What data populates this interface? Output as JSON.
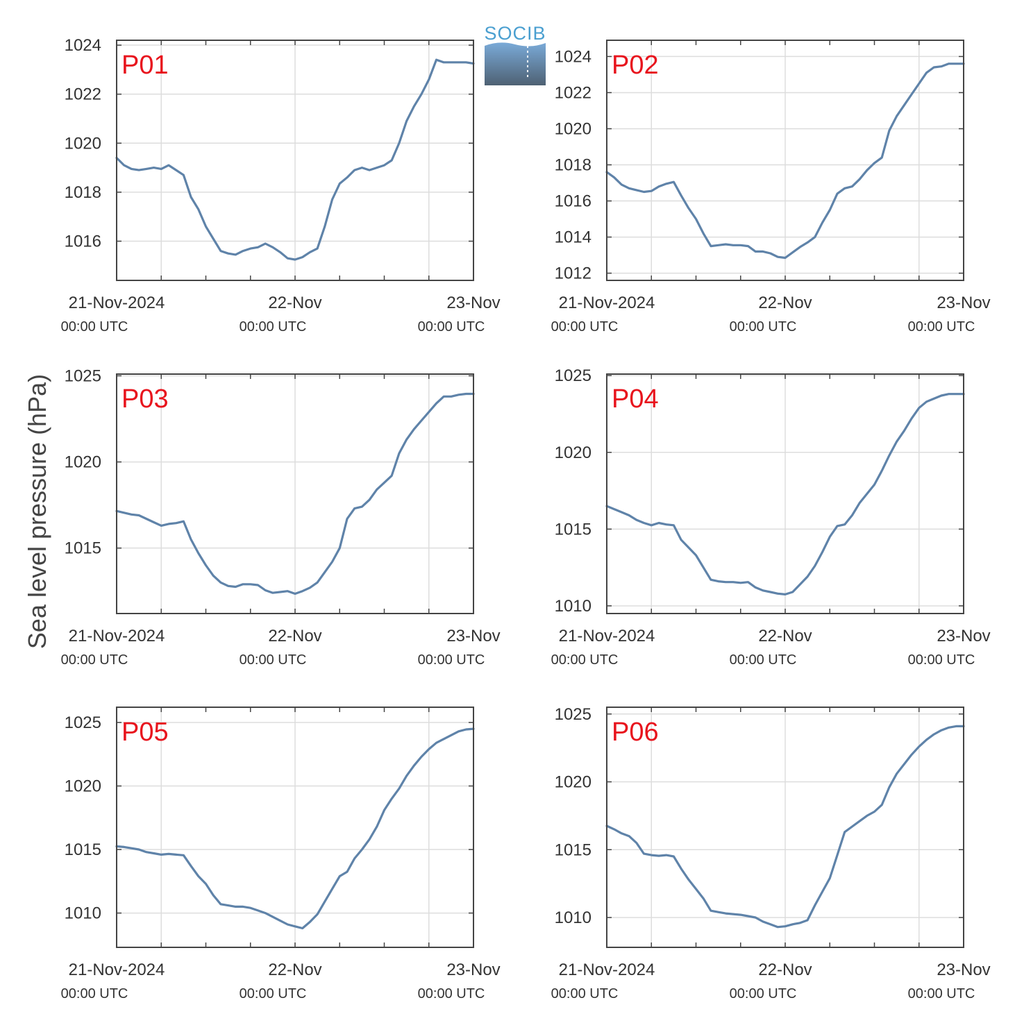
{
  "ylabel": "Sea level pressure (hPa)",
  "logo": {
    "text": "SOCIB",
    "gradient_top": "#7aaad8",
    "gradient_bottom": "#4e6173"
  },
  "colors": {
    "line": "#5f83a9",
    "label": "#e8141d",
    "grid": "#dddddd",
    "axis": "#444444"
  },
  "time_axis": {
    "range_hours": [
      0,
      48
    ],
    "major_ticks": [
      {
        "hour": 0,
        "date": "21-Nov-2024",
        "utc": "00:00 UTC"
      },
      {
        "hour": 24,
        "date": "22-Nov",
        "utc": "00:00 UTC"
      },
      {
        "hour": 48,
        "date": "23-Nov",
        "utc": "00:00 UTC"
      }
    ],
    "grid_hours": [
      6,
      24,
      42
    ],
    "minor_tick_hours": [
      6,
      12,
      18,
      24,
      30,
      36,
      42
    ]
  },
  "chart_data": [
    {
      "type": "line",
      "label": "P01",
      "ylim": [
        1014.4,
        1024.2
      ],
      "yticks": [
        1016,
        1018,
        1020,
        1022,
        1024
      ],
      "x": [
        0,
        1,
        2,
        3,
        4,
        5,
        6,
        7,
        8,
        9,
        10,
        11,
        12,
        13,
        14,
        15,
        16,
        17,
        18,
        19,
        20,
        21,
        22,
        23,
        24,
        25,
        26,
        27,
        28,
        29,
        30,
        31,
        32,
        33,
        34,
        35,
        36,
        37,
        38,
        39,
        40,
        41,
        42,
        43,
        44,
        45,
        46,
        47,
        48
      ],
      "values": [
        1019.4,
        1019.1,
        1018.95,
        1018.9,
        1018.95,
        1019.0,
        1018.95,
        1019.1,
        1018.9,
        1018.7,
        1017.8,
        1017.3,
        1016.6,
        1016.1,
        1015.6,
        1015.5,
        1015.45,
        1015.6,
        1015.7,
        1015.75,
        1015.9,
        1015.75,
        1015.55,
        1015.3,
        1015.25,
        1015.35,
        1015.55,
        1015.7,
        1016.6,
        1017.7,
        1018.35,
        1018.6,
        1018.9,
        1019.0,
        1018.9,
        1019.0,
        1019.1,
        1019.3,
        1020.0,
        1020.9,
        1021.5,
        1022.0,
        1022.6,
        1023.4,
        1023.3,
        1023.3,
        1023.3,
        1023.3,
        1023.25
      ]
    },
    {
      "type": "line",
      "label": "P02",
      "ylim": [
        1011.6,
        1024.9
      ],
      "yticks": [
        1012,
        1014,
        1016,
        1018,
        1020,
        1022,
        1024
      ],
      "x": [
        0,
        1,
        2,
        3,
        4,
        5,
        6,
        7,
        8,
        9,
        10,
        11,
        12,
        13,
        14,
        15,
        16,
        17,
        18,
        19,
        20,
        21,
        22,
        23,
        24,
        25,
        26,
        27,
        28,
        29,
        30,
        31,
        32,
        33,
        34,
        35,
        36,
        37,
        38,
        39,
        40,
        41,
        42,
        43,
        44,
        45,
        46,
        47,
        48
      ],
      "values": [
        1017.6,
        1017.3,
        1016.9,
        1016.7,
        1016.6,
        1016.5,
        1016.55,
        1016.8,
        1016.95,
        1017.05,
        1016.3,
        1015.6,
        1015.0,
        1014.2,
        1013.5,
        1013.55,
        1013.6,
        1013.55,
        1013.55,
        1013.5,
        1013.2,
        1013.2,
        1013.1,
        1012.9,
        1012.85,
        1013.15,
        1013.45,
        1013.7,
        1014.0,
        1014.8,
        1015.5,
        1016.4,
        1016.7,
        1016.8,
        1017.2,
        1017.7,
        1018.1,
        1018.4,
        1019.9,
        1020.7,
        1021.3,
        1021.9,
        1022.5,
        1023.1,
        1023.4,
        1023.45,
        1023.6,
        1023.6,
        1023.6
      ]
    },
    {
      "type": "line",
      "label": "P03",
      "ylim": [
        1011.2,
        1025.1
      ],
      "yticks": [
        1015,
        1020,
        1025
      ],
      "x": [
        0,
        1,
        2,
        3,
        4,
        5,
        6,
        7,
        8,
        9,
        10,
        11,
        12,
        13,
        14,
        15,
        16,
        17,
        18,
        19,
        20,
        21,
        22,
        23,
        24,
        25,
        26,
        27,
        28,
        29,
        30,
        31,
        32,
        33,
        34,
        35,
        36,
        37,
        38,
        39,
        40,
        41,
        42,
        43,
        44,
        45,
        46,
        47,
        48
      ],
      "values": [
        1017.15,
        1017.05,
        1016.95,
        1016.9,
        1016.7,
        1016.5,
        1016.3,
        1016.4,
        1016.45,
        1016.55,
        1015.5,
        1014.7,
        1014.0,
        1013.4,
        1013.0,
        1012.8,
        1012.75,
        1012.9,
        1012.9,
        1012.85,
        1012.55,
        1012.4,
        1012.45,
        1012.5,
        1012.35,
        1012.5,
        1012.7,
        1013.0,
        1013.6,
        1014.2,
        1015.0,
        1016.7,
        1017.3,
        1017.4,
        1017.8,
        1018.4,
        1018.8,
        1019.2,
        1020.5,
        1021.3,
        1021.9,
        1022.4,
        1022.9,
        1023.4,
        1023.8,
        1023.8,
        1023.9,
        1023.95,
        1023.95
      ]
    },
    {
      "type": "line",
      "label": "P04",
      "ylim": [
        1009.5,
        1025.1
      ],
      "yticks": [
        1010,
        1015,
        1020,
        1025
      ],
      "x": [
        0,
        1,
        2,
        3,
        4,
        5,
        6,
        7,
        8,
        9,
        10,
        11,
        12,
        13,
        14,
        15,
        16,
        17,
        18,
        19,
        20,
        21,
        22,
        23,
        24,
        25,
        26,
        27,
        28,
        29,
        30,
        31,
        32,
        33,
        34,
        35,
        36,
        37,
        38,
        39,
        40,
        41,
        42,
        43,
        44,
        45,
        46,
        47,
        48
      ],
      "values": [
        1016.5,
        1016.3,
        1016.1,
        1015.9,
        1015.6,
        1015.4,
        1015.25,
        1015.4,
        1015.3,
        1015.25,
        1014.3,
        1013.8,
        1013.3,
        1012.5,
        1011.7,
        1011.6,
        1011.55,
        1011.55,
        1011.5,
        1011.55,
        1011.2,
        1011.0,
        1010.9,
        1010.8,
        1010.75,
        1010.9,
        1011.4,
        1011.9,
        1012.6,
        1013.5,
        1014.5,
        1015.2,
        1015.3,
        1015.9,
        1016.7,
        1017.3,
        1017.9,
        1018.8,
        1019.8,
        1020.7,
        1021.4,
        1022.2,
        1022.9,
        1023.3,
        1023.5,
        1023.7,
        1023.8,
        1023.8,
        1023.8
      ]
    },
    {
      "type": "line",
      "label": "P05",
      "ylim": [
        1007.3,
        1026.2
      ],
      "yticks": [
        1010,
        1015,
        1020,
        1025
      ],
      "x": [
        0,
        1,
        2,
        3,
        4,
        5,
        6,
        7,
        8,
        9,
        10,
        11,
        12,
        13,
        14,
        15,
        16,
        17,
        18,
        19,
        20,
        21,
        22,
        23,
        24,
        25,
        26,
        27,
        28,
        29,
        30,
        31,
        32,
        33,
        34,
        35,
        36,
        37,
        38,
        39,
        40,
        41,
        42,
        43,
        44,
        45,
        46,
        47,
        48
      ],
      "values": [
        1015.25,
        1015.2,
        1015.1,
        1015.0,
        1014.8,
        1014.7,
        1014.6,
        1014.65,
        1014.6,
        1014.55,
        1013.7,
        1012.9,
        1012.3,
        1011.4,
        1010.7,
        1010.6,
        1010.5,
        1010.5,
        1010.4,
        1010.2,
        1010.0,
        1009.7,
        1009.4,
        1009.1,
        1008.95,
        1008.8,
        1009.3,
        1009.9,
        1010.9,
        1011.9,
        1012.9,
        1013.25,
        1014.3,
        1015.0,
        1015.8,
        1016.8,
        1018.1,
        1019.0,
        1019.8,
        1020.8,
        1021.6,
        1022.3,
        1022.9,
        1023.4,
        1023.7,
        1024.0,
        1024.3,
        1024.45,
        1024.5
      ]
    },
    {
      "type": "line",
      "label": "P06",
      "ylim": [
        1007.8,
        1025.5
      ],
      "yticks": [
        1010,
        1015,
        1020,
        1025
      ],
      "x": [
        0,
        1,
        2,
        3,
        4,
        5,
        6,
        7,
        8,
        9,
        10,
        11,
        12,
        13,
        14,
        15,
        16,
        17,
        18,
        19,
        20,
        21,
        22,
        23,
        24,
        25,
        26,
        27,
        28,
        29,
        30,
        31,
        32,
        33,
        34,
        35,
        36,
        37,
        38,
        39,
        40,
        41,
        42,
        43,
        44,
        45,
        46,
        47,
        48
      ],
      "values": [
        1016.75,
        1016.5,
        1016.2,
        1016.0,
        1015.5,
        1014.7,
        1014.6,
        1014.55,
        1014.6,
        1014.5,
        1013.6,
        1012.8,
        1012.1,
        1011.4,
        1010.5,
        1010.4,
        1010.3,
        1010.25,
        1010.2,
        1010.1,
        1010.0,
        1009.7,
        1009.5,
        1009.3,
        1009.35,
        1009.5,
        1009.6,
        1009.8,
        1010.9,
        1011.9,
        1012.9,
        1014.6,
        1016.3,
        1016.7,
        1017.1,
        1017.5,
        1017.8,
        1018.3,
        1019.6,
        1020.6,
        1021.3,
        1022.0,
        1022.6,
        1023.1,
        1023.5,
        1023.8,
        1024.0,
        1024.1,
        1024.1
      ]
    }
  ]
}
